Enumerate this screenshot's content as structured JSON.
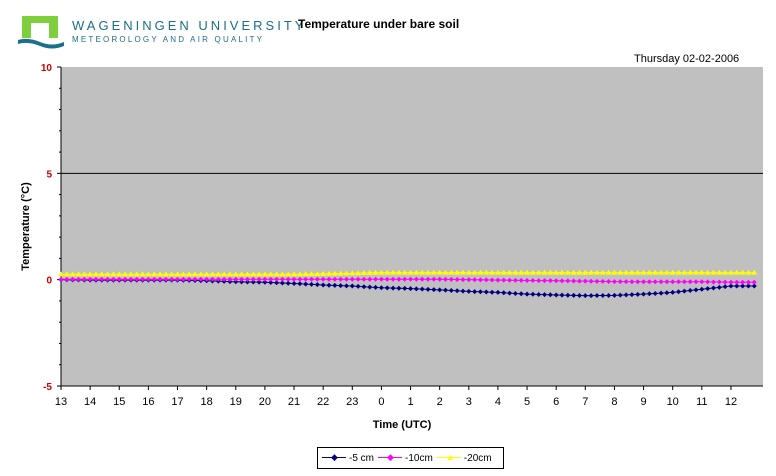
{
  "header": {
    "brand_line1": "WAGENINGEN UNIVERSITY",
    "brand_line2": "METEOROLOGY AND AIR QUALITY",
    "title": "Temperature under bare soil",
    "date": "Thursday 02-02-2006"
  },
  "colors": {
    "plot_bg": "#c0c0c0",
    "logo_green": "#7ecf3b",
    "logo_blue": "#1a6f8a",
    "ytick_color": "#cc0000"
  },
  "chart_data": {
    "type": "line",
    "title": "Temperature under bare soil",
    "xlabel": "Time (UTC)",
    "ylabel": "Temperature (°C)",
    "ylim": [
      -5,
      10
    ],
    "yticks": [
      -5,
      0,
      5,
      10
    ],
    "reference_line": 5,
    "categories": [
      "13",
      "14",
      "15",
      "16",
      "17",
      "18",
      "19",
      "20",
      "21",
      "22",
      "23",
      "0",
      "1",
      "2",
      "3",
      "4",
      "5",
      "6",
      "7",
      "8",
      "9",
      "10",
      "11",
      "12"
    ],
    "legend_position": "bottom",
    "series": [
      {
        "name": "-5 cm",
        "color": "#000080",
        "marker": "diamond",
        "values": [
          0.0,
          -0.02,
          -0.02,
          -0.02,
          -0.02,
          -0.05,
          -0.1,
          -0.12,
          -0.18,
          -0.25,
          -0.3,
          -0.38,
          -0.42,
          -0.48,
          -0.55,
          -0.6,
          -0.68,
          -0.72,
          -0.75,
          -0.74,
          -0.68,
          -0.6,
          -0.45,
          -0.3
        ]
      },
      {
        "name": "-10cm",
        "color": "#ff00ff",
        "marker": "diamond",
        "values": [
          0.02,
          0.02,
          0.02,
          0.02,
          0.02,
          0.02,
          0.02,
          0.02,
          0.02,
          0.02,
          0.02,
          0.02,
          0.02,
          0.02,
          0.0,
          -0.02,
          -0.04,
          -0.05,
          -0.07,
          -0.09,
          -0.1,
          -0.1,
          -0.1,
          -0.12
        ]
      },
      {
        "name": "-20cm",
        "color": "#ffff00",
        "marker": "triangle",
        "values": [
          0.25,
          0.25,
          0.25,
          0.25,
          0.25,
          0.25,
          0.25,
          0.25,
          0.25,
          0.27,
          0.3,
          0.33,
          0.33,
          0.33,
          0.33,
          0.33,
          0.33,
          0.33,
          0.33,
          0.33,
          0.33,
          0.33,
          0.33,
          0.33
        ]
      }
    ]
  }
}
